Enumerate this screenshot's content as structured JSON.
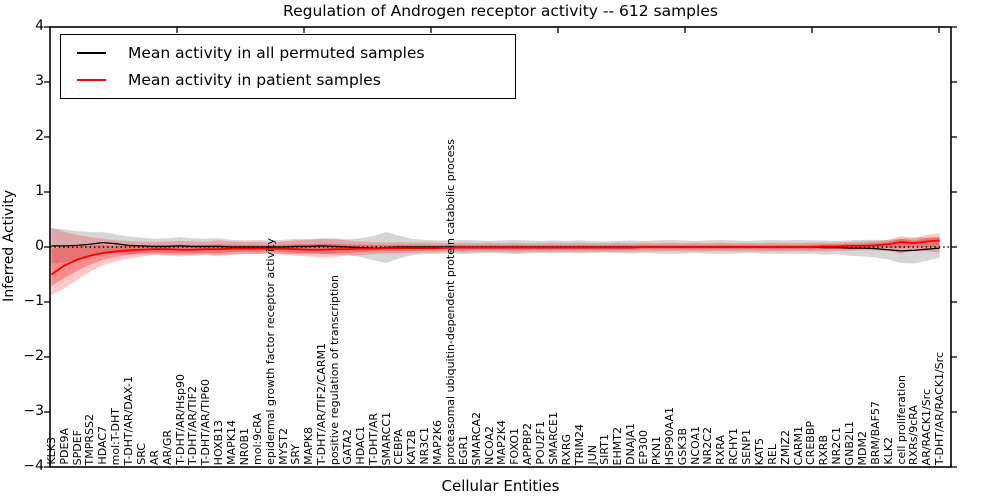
{
  "title": "Regulation of Androgen receptor activity -- 612 samples",
  "legend": {
    "items": [
      {
        "label": "Mean activity in all permuted samples",
        "color": "#000000"
      },
      {
        "label": "Mean activity in patient samples",
        "color": "#ff0000"
      }
    ]
  },
  "axes": {
    "xlabel": "Cellular Entities",
    "ylabel": "Inferred Activity",
    "ylim": [
      -4,
      4
    ],
    "yticks": [
      {
        "label": "4",
        "value": 4
      },
      {
        "label": "3",
        "value": 3
      },
      {
        "label": "2",
        "value": 2
      },
      {
        "label": "1",
        "value": 1
      },
      {
        "label": "0",
        "value": 0
      },
      {
        "label": "−1",
        "value": -1
      },
      {
        "label": "−2",
        "value": -2
      },
      {
        "label": "−3",
        "value": -3
      },
      {
        "label": "−4",
        "value": -4
      }
    ]
  },
  "chart_data": {
    "type": "line",
    "title": "Regulation of Androgen receptor activity -- 612 samples",
    "xlabel": "Cellular Entities",
    "ylabel": "Inferred Activity",
    "ylim": [
      -4,
      4
    ],
    "grid": false,
    "legend_position": "upper left",
    "zero_line": {
      "show": true,
      "style": "dotted",
      "color": "#000000"
    },
    "categories": [
      "KLK3",
      "PDE9A",
      "SPDEF",
      "TMPRSS2",
      "HDAC7",
      "mol:T-DHT",
      "T-DHT/AR/DAX-1",
      "SRC",
      "AR",
      "AR/GR",
      "T-DHT/AR/Hsp90",
      "T-DHT/AR/TIF2",
      "T-DHT/AR/TIP60",
      "HOXB13",
      "MAPK14",
      "NR0B1",
      "mol:9cRA",
      "epidermal growth factor receptor activity",
      "MYST2",
      "SRY",
      "MAPK8",
      "T-DHT/AR/TIF2/CARM1",
      "positive regulation of transcription",
      "GATA2",
      "HDAC1",
      "T-DHT/AR",
      "SMARCC1",
      "CEBPA",
      "KAT2B",
      "NR3C1",
      "MAP2K6",
      "proteasomal ubiquitin-dependent protein catabolic process",
      "EGR1",
      "SMARCA2",
      "NCOA2",
      "MAP2K4",
      "FOXO1",
      "APPBP2",
      "POU2F1",
      "SMARCE1",
      "RXRG",
      "TRIM24",
      "JUN",
      "SIRT1",
      "EHMT2",
      "DNAJA1",
      "EP300",
      "PKN1",
      "HSP90AA1",
      "GSK3B",
      "NCOA1",
      "NR2C2",
      "RXRA",
      "RCHY1",
      "SENP1",
      "KAT5",
      "REL",
      "ZMIZ2",
      "CARM1",
      "CREBBP",
      "RXRB",
      "NR2C1",
      "GNB2L1",
      "MDM2",
      "BRM/BAF57",
      "KLK2",
      "cell proliferation",
      "RXRs/9cRA",
      "AR/RACK1/Src",
      "T-DHT/AR/RACK1/Src"
    ],
    "series": [
      {
        "name": "Mean activity in all permuted samples",
        "color": "#000000",
        "width": 1.3,
        "values": [
          0.02,
          0.02,
          0.03,
          0.05,
          0.08,
          0.06,
          0.03,
          0.02,
          0.01,
          0.01,
          0.02,
          0.01,
          0.01,
          0.01,
          0,
          0,
          0,
          0,
          0,
          0.01,
          0.01,
          0.02,
          0.01,
          0,
          -0.01,
          -0.02,
          -0.01,
          0,
          0,
          0,
          0,
          0,
          0,
          0,
          0,
          0,
          0,
          0,
          0,
          0,
          0,
          0,
          0,
          0,
          0,
          0,
          0,
          0,
          0,
          0,
          0,
          0,
          0,
          0,
          0,
          0,
          0,
          0,
          0,
          0,
          -0.01,
          -0.01,
          -0.02,
          -0.02,
          -0.03,
          -0.05,
          -0.07,
          -0.06,
          -0.04,
          -0.02
        ]
      },
      {
        "name": "Mean activity in patient samples",
        "color": "#ff0000",
        "width": 1.8,
        "values": [
          -0.5,
          -0.34,
          -0.23,
          -0.16,
          -0.11,
          -0.08,
          -0.06,
          -0.05,
          -0.04,
          -0.04,
          -0.05,
          -0.05,
          -0.04,
          -0.04,
          -0.03,
          -0.03,
          -0.03,
          -0.03,
          -0.03,
          -0.04,
          -0.05,
          -0.05,
          -0.04,
          -0.04,
          -0.03,
          -0.03,
          -0.02,
          -0.02,
          -0.02,
          -0.02,
          -0.02,
          -0.01,
          -0.01,
          -0.01,
          -0.01,
          -0.01,
          -0.01,
          -0.01,
          -0.01,
          -0.01,
          -0.01,
          -0.01,
          -0.01,
          -0.01,
          -0.01,
          -0.01,
          0,
          0,
          0,
          0,
          0,
          0,
          0,
          0,
          0,
          0,
          0,
          0,
          0,
          0,
          0.01,
          0.01,
          0.02,
          0.02,
          0.03,
          0.05,
          0.09,
          0.07,
          0.1,
          0.12
        ]
      }
    ],
    "bands": [
      {
        "name": "permuted-samples-std-band",
        "fill": "rgba(0,0,0,0.16)",
        "upper": [
          0.34,
          0.32,
          0.29,
          0.27,
          0.27,
          0.23,
          0.19,
          0.17,
          0.15,
          0.16,
          0.18,
          0.16,
          0.15,
          0.16,
          0.13,
          0.12,
          0.13,
          0.12,
          0.13,
          0.15,
          0.14,
          0.16,
          0.16,
          0.14,
          0.16,
          0.2,
          0.27,
          0.21,
          0.15,
          0.13,
          0.12,
          0.12,
          0.13,
          0.12,
          0.11,
          0.12,
          0.13,
          0.12,
          0.11,
          0.12,
          0.11,
          0.12,
          0.11,
          0.1,
          0.11,
          0.12,
          0.11,
          0.12,
          0.13,
          0.12,
          0.11,
          0.12,
          0.13,
          0.12,
          0.11,
          0.12,
          0.13,
          0.12,
          0.13,
          0.12,
          0.12,
          0.11,
          0.12,
          0.13,
          0.13,
          0.13,
          0.15,
          0.18,
          0.17,
          0.16
        ],
        "lower": [
          -0.3,
          -0.28,
          -0.23,
          -0.17,
          -0.11,
          -0.11,
          -0.13,
          -0.13,
          -0.13,
          -0.14,
          -0.14,
          -0.14,
          -0.13,
          -0.14,
          -0.13,
          -0.12,
          -0.13,
          -0.12,
          -0.13,
          -0.13,
          -0.12,
          -0.12,
          -0.14,
          -0.14,
          -0.18,
          -0.24,
          -0.29,
          -0.21,
          -0.15,
          -0.13,
          -0.12,
          -0.12,
          -0.13,
          -0.12,
          -0.11,
          -0.12,
          -0.13,
          -0.12,
          -0.11,
          -0.12,
          -0.11,
          -0.12,
          -0.11,
          -0.1,
          -0.11,
          -0.12,
          -0.11,
          -0.12,
          -0.13,
          -0.12,
          -0.11,
          -0.12,
          -0.13,
          -0.12,
          -0.11,
          -0.12,
          -0.13,
          -0.12,
          -0.13,
          -0.12,
          -0.14,
          -0.13,
          -0.16,
          -0.17,
          -0.19,
          -0.23,
          -0.29,
          -0.3,
          -0.25,
          -0.2
        ]
      },
      {
        "name": "patient-samples-std-band",
        "fill": "rgba(255,0,0,0.22)",
        "inner": {
          "factor": 0.55,
          "fill": "rgba(255,0,0,0.30)"
        },
        "upper": [
          0.35,
          0.28,
          0.22,
          0.18,
          0.15,
          0.12,
          0.11,
          0.1,
          0.09,
          0.1,
          0.11,
          0.1,
          0.09,
          0.12,
          0.1,
          0.09,
          0.09,
          0.08,
          0.1,
          0.12,
          0.13,
          0.15,
          0.14,
          0.12,
          0.1,
          0.09,
          0.08,
          0.09,
          0.08,
          0.08,
          0.08,
          0.07,
          0.08,
          0.07,
          0.08,
          0.07,
          0.08,
          0.07,
          0.07,
          0.08,
          0.07,
          0.08,
          0.07,
          0.07,
          0.08,
          0.07,
          0.08,
          0.07,
          0.08,
          0.07,
          0.08,
          0.07,
          0.08,
          0.07,
          0.08,
          0.07,
          0.08,
          0.08,
          0.07,
          0.08,
          0.08,
          0.08,
          0.09,
          0.1,
          0.11,
          0.13,
          0.2,
          0.15,
          0.22,
          0.25
        ],
        "lower": [
          -0.88,
          -0.75,
          -0.6,
          -0.45,
          -0.33,
          -0.26,
          -0.21,
          -0.17,
          -0.15,
          -0.16,
          -0.17,
          -0.16,
          -0.15,
          -0.17,
          -0.14,
          -0.13,
          -0.13,
          -0.12,
          -0.14,
          -0.16,
          -0.17,
          -0.19,
          -0.18,
          -0.16,
          -0.15,
          -0.13,
          -0.12,
          -0.12,
          -0.11,
          -0.1,
          -0.1,
          -0.09,
          -0.1,
          -0.09,
          -0.09,
          -0.09,
          -0.1,
          -0.09,
          -0.09,
          -0.09,
          -0.09,
          -0.09,
          -0.09,
          -0.09,
          -0.09,
          -0.09,
          -0.08,
          -0.08,
          -0.08,
          -0.08,
          -0.08,
          -0.08,
          -0.08,
          -0.08,
          -0.08,
          -0.08,
          -0.08,
          -0.08,
          -0.08,
          -0.08,
          -0.08,
          -0.07,
          -0.07,
          -0.06,
          -0.06,
          -0.07,
          -0.12,
          -0.05,
          -0.08,
          -0.1
        ]
      }
    ]
  }
}
